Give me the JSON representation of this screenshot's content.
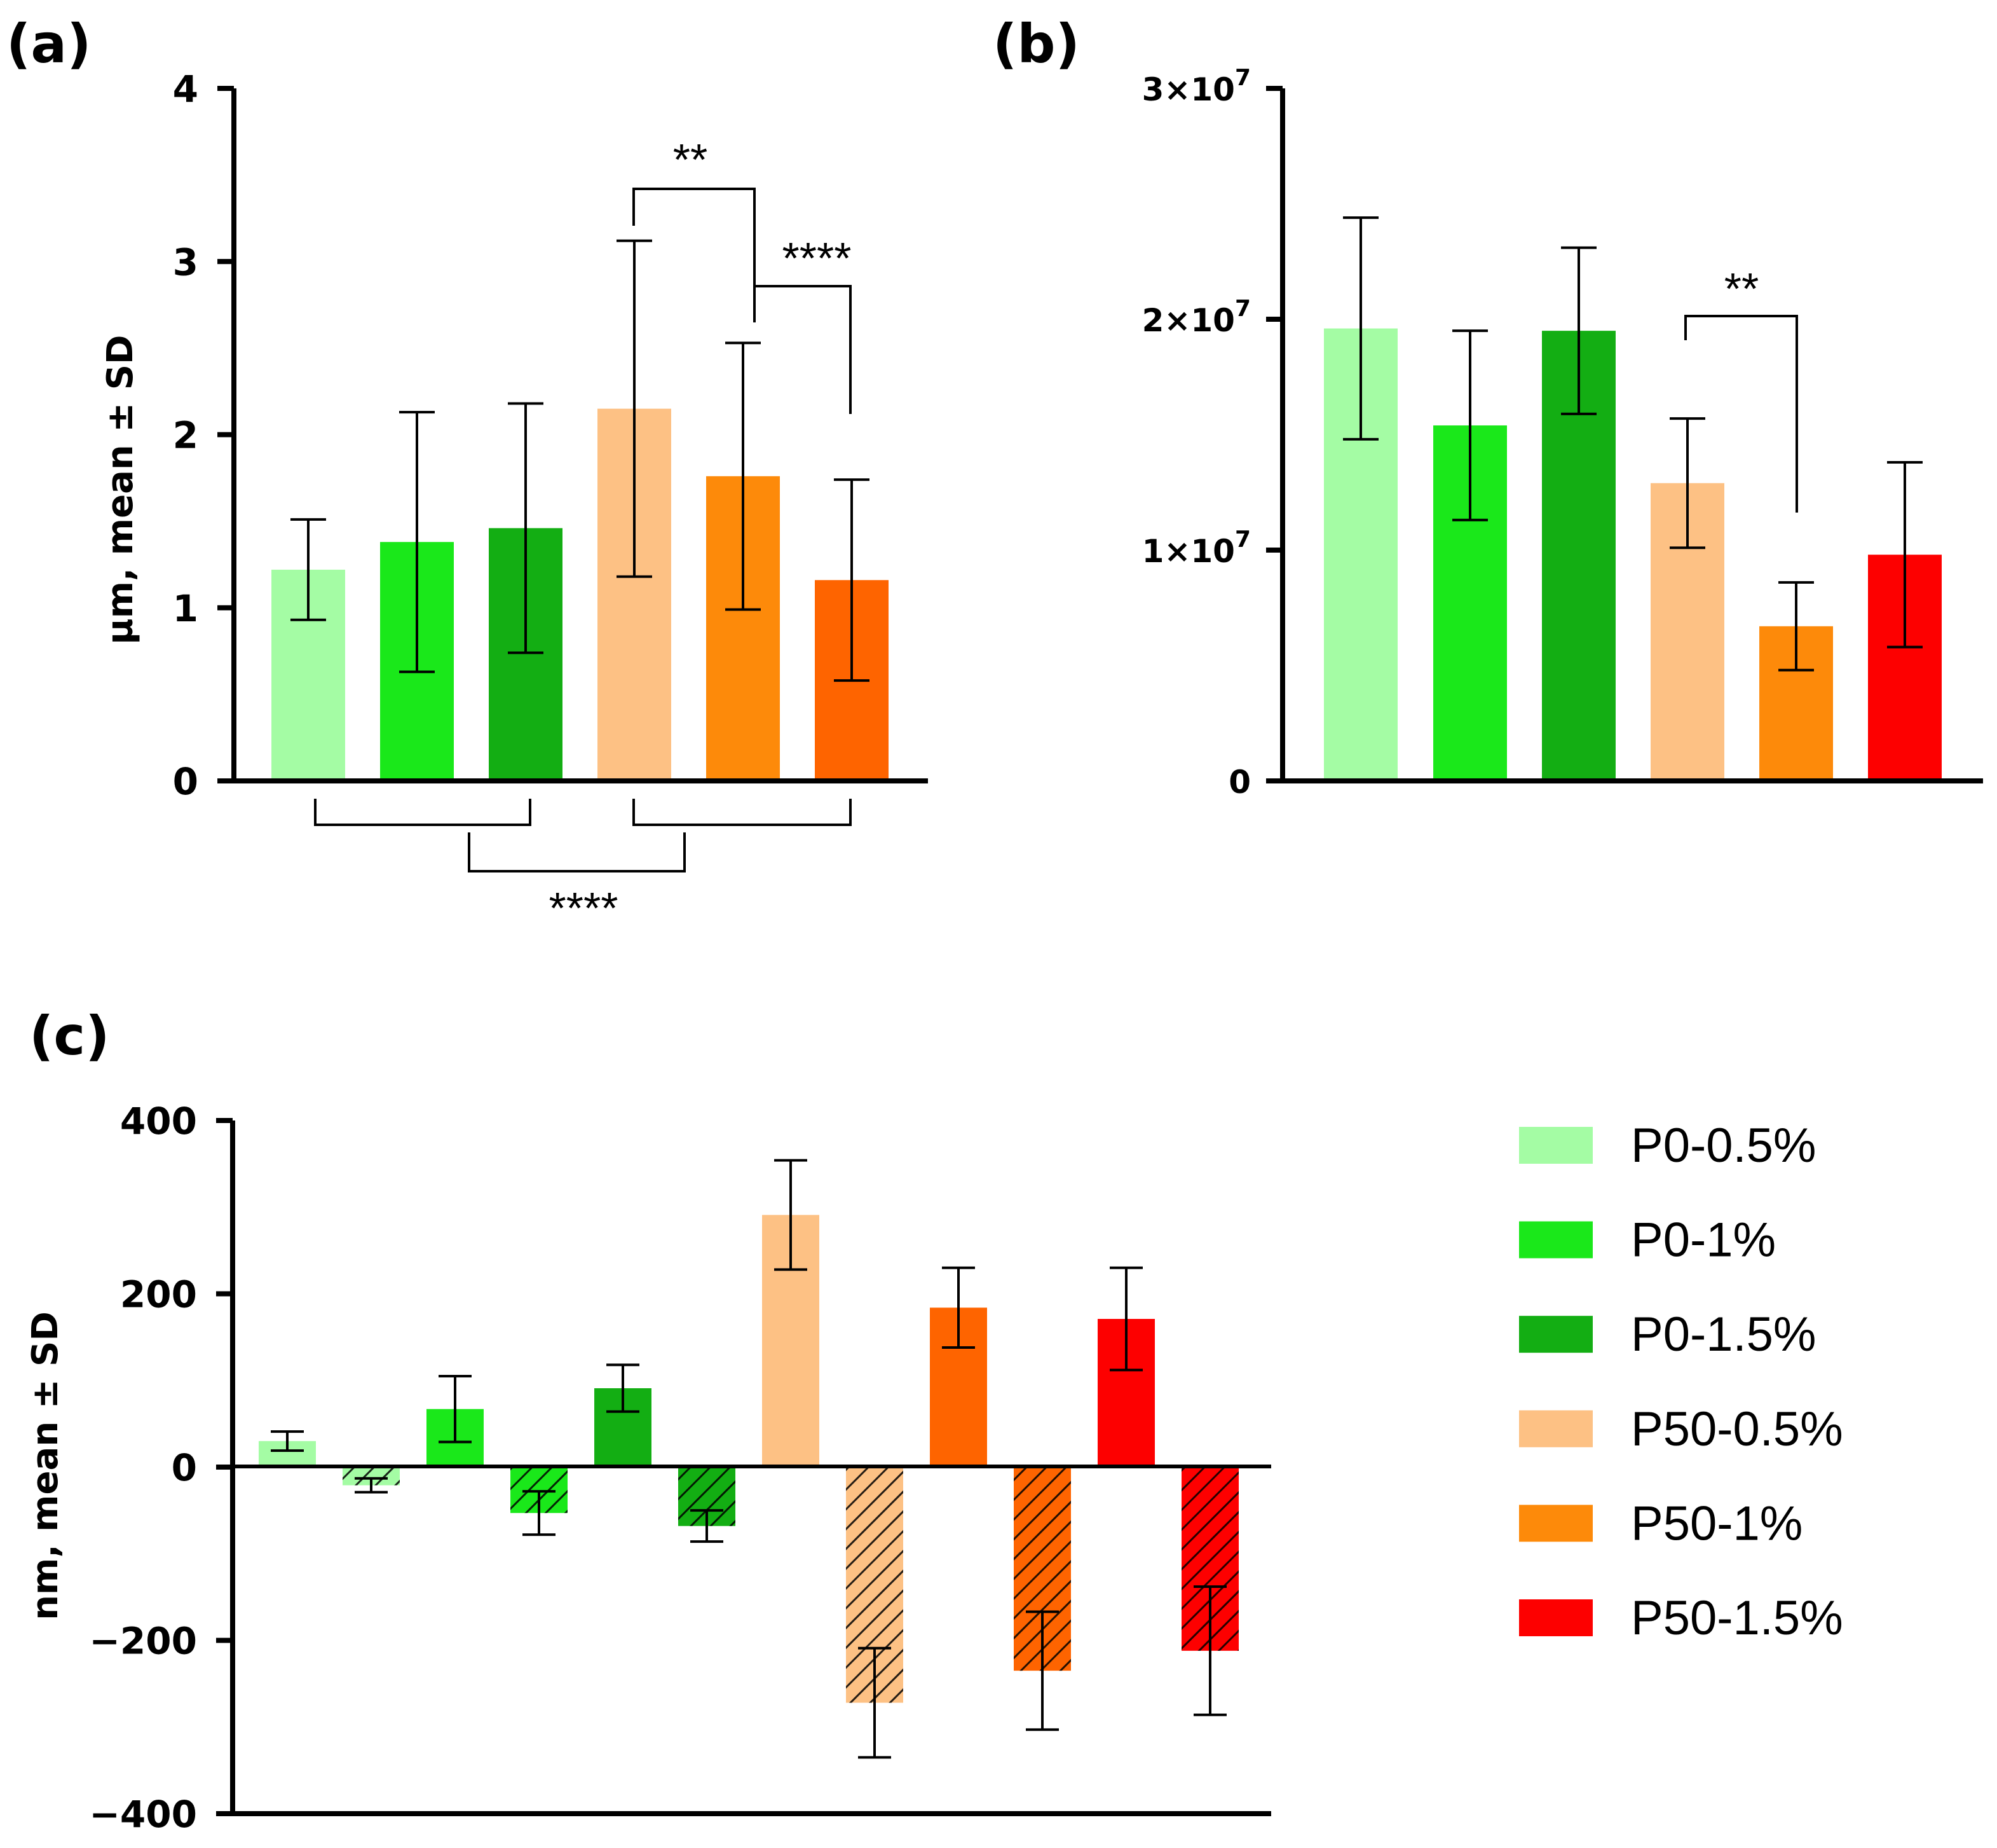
{
  "colors": {
    "P0-0.5%": "#a4fca4",
    "P0-1%": "#1ae81a",
    "P0-1.5%": "#13ae13",
    "P50-0.5%": "#fdc184",
    "P50-1%": "#fd8a0a",
    "P50-1.5%": "#fd0000",
    "P50-1.5%-a": "#fe6400"
  },
  "chart_data": [
    {
      "panel": "(a)",
      "type": "bar",
      "categories": [
        "P0-0.5%",
        "P0-1%",
        "P0-1.5%",
        "P50-0.5%",
        "P50-1%",
        "P50-1.5%"
      ],
      "values": [
        1.22,
        1.38,
        1.46,
        2.15,
        1.76,
        1.16
      ],
      "errors": [
        0.29,
        0.75,
        0.72,
        0.97,
        0.77,
        0.58
      ],
      "bar_color_keys": [
        "P0-0.5%",
        "P0-1%",
        "P0-1.5%",
        "P50-0.5%",
        "P50-1%",
        "P50-1.5%-a"
      ],
      "ylabel": "µm, mean ± SD",
      "ylim": [
        0,
        4
      ],
      "yticks": [
        0,
        1,
        2,
        3,
        4
      ],
      "ytick_labels": [
        "0",
        "1",
        "2",
        "3",
        "4"
      ],
      "significance": [
        {
          "groups": [
            3,
            4
          ],
          "label": "**"
        },
        {
          "groups": [
            4,
            5
          ],
          "label": "****"
        },
        {
          "groups": [
            "P0 group",
            "P50 group"
          ],
          "label": "****",
          "position": "below"
        }
      ]
    },
    {
      "panel": "(b)",
      "type": "bar",
      "categories": [
        "P0-0.5%",
        "P0-1%",
        "P0-1.5%",
        "P50-0.5%",
        "P50-1%",
        "P50-1.5%"
      ],
      "values": [
        19600000,
        15400000,
        19500000,
        12900000,
        6700000,
        9800000
      ],
      "errors": [
        4800000,
        4100000,
        3600000,
        2800000,
        1900000,
        4000000
      ],
      "bar_color_keys": [
        "P0-0.5%",
        "P0-1%",
        "P0-1.5%",
        "P50-0.5%",
        "P50-1%",
        "P50-1.5%"
      ],
      "ylabel": "",
      "ylim": [
        0,
        30000000
      ],
      "yticks": [
        0,
        10000000,
        20000000,
        30000000
      ],
      "ytick_labels": [
        "0",
        "1×10",
        "2×10",
        "3×10"
      ],
      "ytick_exponent": "7",
      "significance": [
        {
          "groups": [
            3,
            4
          ],
          "label": "**"
        }
      ]
    },
    {
      "panel": "(c)",
      "type": "bar",
      "categories": [
        "P0-0.5%",
        "P0-1%",
        "P0-1.5%",
        "P50-0.5%",
        "P50-1%",
        "P50-1.5%"
      ],
      "series": [
        {
          "name": "positive",
          "values": [
            30,
            67,
            91,
            291,
            184,
            171
          ],
          "errors": [
            11,
            38,
            27,
            63,
            46,
            59
          ]
        },
        {
          "name": "negative (hatched)",
          "values": [
            -21,
            -53,
            -68,
            -272,
            -235,
            -212
          ],
          "errors": [
            8,
            25,
            18,
            63,
            68,
            74
          ]
        }
      ],
      "bar_color_keys": [
        "P0-0.5%",
        "P0-1%",
        "P0-1.5%",
        "P50-0.5%",
        "P50-1.5%-a",
        "P50-1.5%"
      ],
      "ylabel": "nm, mean ± SD",
      "ylim": [
        -400,
        400
      ],
      "yticks": [
        -400,
        -200,
        0,
        200,
        400
      ],
      "ytick_labels": [
        "−400",
        "−200",
        "0",
        "200",
        "400"
      ]
    }
  ],
  "legend": {
    "items": [
      {
        "label": "P0-0.5%",
        "color_key": "P0-0.5%"
      },
      {
        "label": "P0-1%",
        "color_key": "P0-1%"
      },
      {
        "label": "P0-1.5%",
        "color_key": "P0-1.5%"
      },
      {
        "label": "P50-0.5%",
        "color_key": "P50-0.5%"
      },
      {
        "label": "P50-1%",
        "color_key": "P50-1%"
      },
      {
        "label": "P50-1.5%",
        "color_key": "P50-1.5%"
      }
    ]
  }
}
